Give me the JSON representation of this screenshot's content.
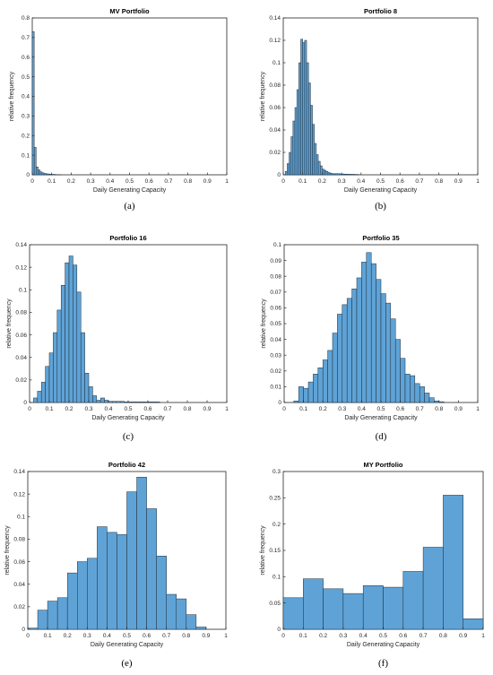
{
  "figure": {
    "panels": [
      {
        "caption": "(a)"
      },
      {
        "caption": "(b)"
      },
      {
        "caption": "(c)"
      },
      {
        "caption": "(d)"
      },
      {
        "caption": "(e)"
      },
      {
        "caption": "(f)"
      }
    ]
  },
  "colors": {
    "bar_fill": "#5fa3d6",
    "bar_edge": "#1f2d3a",
    "axis": "#262626",
    "text": "#262626"
  },
  "chart_data": [
    {
      "type": "bar",
      "title": "MV Portfolio",
      "xlabel": "Daily Generating Capacity",
      "ylabel": "relative frequency",
      "xlim": [
        0,
        1
      ],
      "ylim": [
        0,
        0.8
      ],
      "xticks": [
        "0",
        "0.1",
        "0.2",
        "0.3",
        "0.4",
        "0.5",
        "0.6",
        "0.7",
        "0.8",
        "0.9",
        "1"
      ],
      "yticks": [
        "0",
        "0.1",
        "0.2",
        "0.3",
        "0.4",
        "0.5",
        "0.6",
        "0.7",
        "0.8"
      ],
      "bin_width": 0.01,
      "bin_start": 0,
      "values": [
        0.73,
        0.14,
        0.04,
        0.025,
        0.015,
        0.01,
        0.007,
        0.005,
        0.004,
        0.003,
        0.002,
        0.002,
        0.001,
        0.001,
        0.001
      ]
    },
    {
      "type": "bar",
      "title": "Portfolio 8",
      "xlabel": "Daily Generating Capacity",
      "ylabel": "relative frequency",
      "xlim": [
        0,
        1
      ],
      "ylim": [
        0,
        0.14
      ],
      "xticks": [
        "0",
        "0.1",
        "0.2",
        "0.3",
        "0.4",
        "0.5",
        "0.6",
        "0.7",
        "0.8",
        "0.9",
        "1"
      ],
      "yticks": [
        "0",
        "0.02",
        "0.04",
        "0.06",
        "0.08",
        "0.1",
        "0.12",
        "0.14"
      ],
      "bin_width": 0.01,
      "bin_start": 0.01,
      "values": [
        0.003,
        0.01,
        0.02,
        0.034,
        0.048,
        0.06,
        0.076,
        0.1,
        0.121,
        0.118,
        0.12,
        0.1,
        0.082,
        0.062,
        0.045,
        0.028,
        0.018,
        0.012,
        0.008,
        0.005,
        0.004,
        0.003,
        0.002,
        0.0015,
        0.001,
        0.001,
        0.001,
        0.001,
        0.0008,
        0.0008,
        0.0006,
        0.0006,
        0.0005,
        0.0005,
        0.0004,
        0.0004,
        0.0003,
        0.0003
      ]
    },
    {
      "type": "bar",
      "title": "Portfolio 16",
      "xlabel": "Daily Generating Capacity",
      "ylabel": "relative frequency",
      "xlim": [
        0,
        1
      ],
      "ylim": [
        0,
        0.14
      ],
      "xticks": [
        "0",
        "0.1",
        "0.2",
        "0.3",
        "0.4",
        "0.5",
        "0.6",
        "0.7",
        "0.8",
        "0.9",
        "1"
      ],
      "yticks": [
        "0",
        "0.02",
        "0.04",
        "0.06",
        "0.08",
        "0.1",
        "0.12",
        "0.14"
      ],
      "bin_width": 0.02,
      "bin_start": 0.02,
      "values": [
        0.004,
        0.01,
        0.018,
        0.032,
        0.044,
        0.062,
        0.082,
        0.104,
        0.124,
        0.13,
        0.122,
        0.098,
        0.062,
        0.026,
        0.014,
        0.006,
        0.002,
        0.004,
        0.002,
        0.001,
        0.001,
        0.001,
        0.001,
        0.0005,
        0.0005,
        0.0005,
        0.0005,
        0.0005,
        0.0005,
        0.0005,
        0.0005,
        0.0005
      ]
    },
    {
      "type": "bar",
      "title": "Portfolio 35",
      "xlabel": "Daily Generating Capacity",
      "ylabel": "relative frequency",
      "xlim": [
        0,
        1
      ],
      "ylim": [
        0,
        0.1
      ],
      "xticks": [
        "0",
        "0.1",
        "0.2",
        "0.3",
        "0.4",
        "0.5",
        "0.6",
        "0.7",
        "0.8",
        "0.9",
        "1"
      ],
      "yticks": [
        "0",
        "0.01",
        "0.02",
        "0.03",
        "0.04",
        "0.05",
        "0.06",
        "0.07",
        "0.08",
        "0.09",
        "0.1"
      ],
      "bin_width": 0.025,
      "bin_start": 0.05,
      "values": [
        0.001,
        0.01,
        0.009,
        0.013,
        0.018,
        0.022,
        0.027,
        0.033,
        0.044,
        0.056,
        0.062,
        0.066,
        0.072,
        0.079,
        0.089,
        0.095,
        0.088,
        0.078,
        0.069,
        0.063,
        0.053,
        0.04,
        0.028,
        0.018,
        0.017,
        0.012,
        0.01,
        0.006,
        0.003,
        0.001,
        0.0005
      ]
    },
    {
      "type": "bar",
      "title": "Portfolio 42",
      "xlabel": "Daily Generating Capacity",
      "ylabel": "relative frequency",
      "xlim": [
        0,
        1
      ],
      "ylim": [
        0,
        0.14
      ],
      "xticks": [
        "0",
        "0.1",
        "0.2",
        "0.3",
        "0.4",
        "0.5",
        "0.6",
        "0.7",
        "0.8",
        "0.9",
        "1"
      ],
      "yticks": [
        "0",
        "0.02",
        "0.04",
        "0.06",
        "0.08",
        "0.1",
        "0.12",
        "0.14"
      ],
      "bin_width": 0.05,
      "bin_start": 0.0,
      "values": [
        0.001,
        0.017,
        0.025,
        0.028,
        0.05,
        0.06,
        0.063,
        0.091,
        0.086,
        0.084,
        0.122,
        0.135,
        0.107,
        0.065,
        0.031,
        0.027,
        0.013,
        0.002
      ]
    },
    {
      "type": "bar",
      "title": "MY Portfolio",
      "xlabel": "Daily Generating Capacity",
      "ylabel": "relative frequency",
      "xlim": [
        0,
        1
      ],
      "ylim": [
        0,
        0.3
      ],
      "xticks": [
        "0",
        "0.1",
        "0.2",
        "0.3",
        "0.4",
        "0.5",
        "0.6",
        "0.7",
        "0.8",
        "0.9",
        "1"
      ],
      "yticks": [
        "0",
        "0.05",
        "0.1",
        "0.15",
        "0.2",
        "0.25",
        "0.3"
      ],
      "bin_width": 0.1,
      "bin_start": 0.0,
      "values": [
        0.06,
        0.096,
        0.077,
        0.068,
        0.083,
        0.08,
        0.11,
        0.156,
        0.255,
        0.02
      ]
    }
  ]
}
